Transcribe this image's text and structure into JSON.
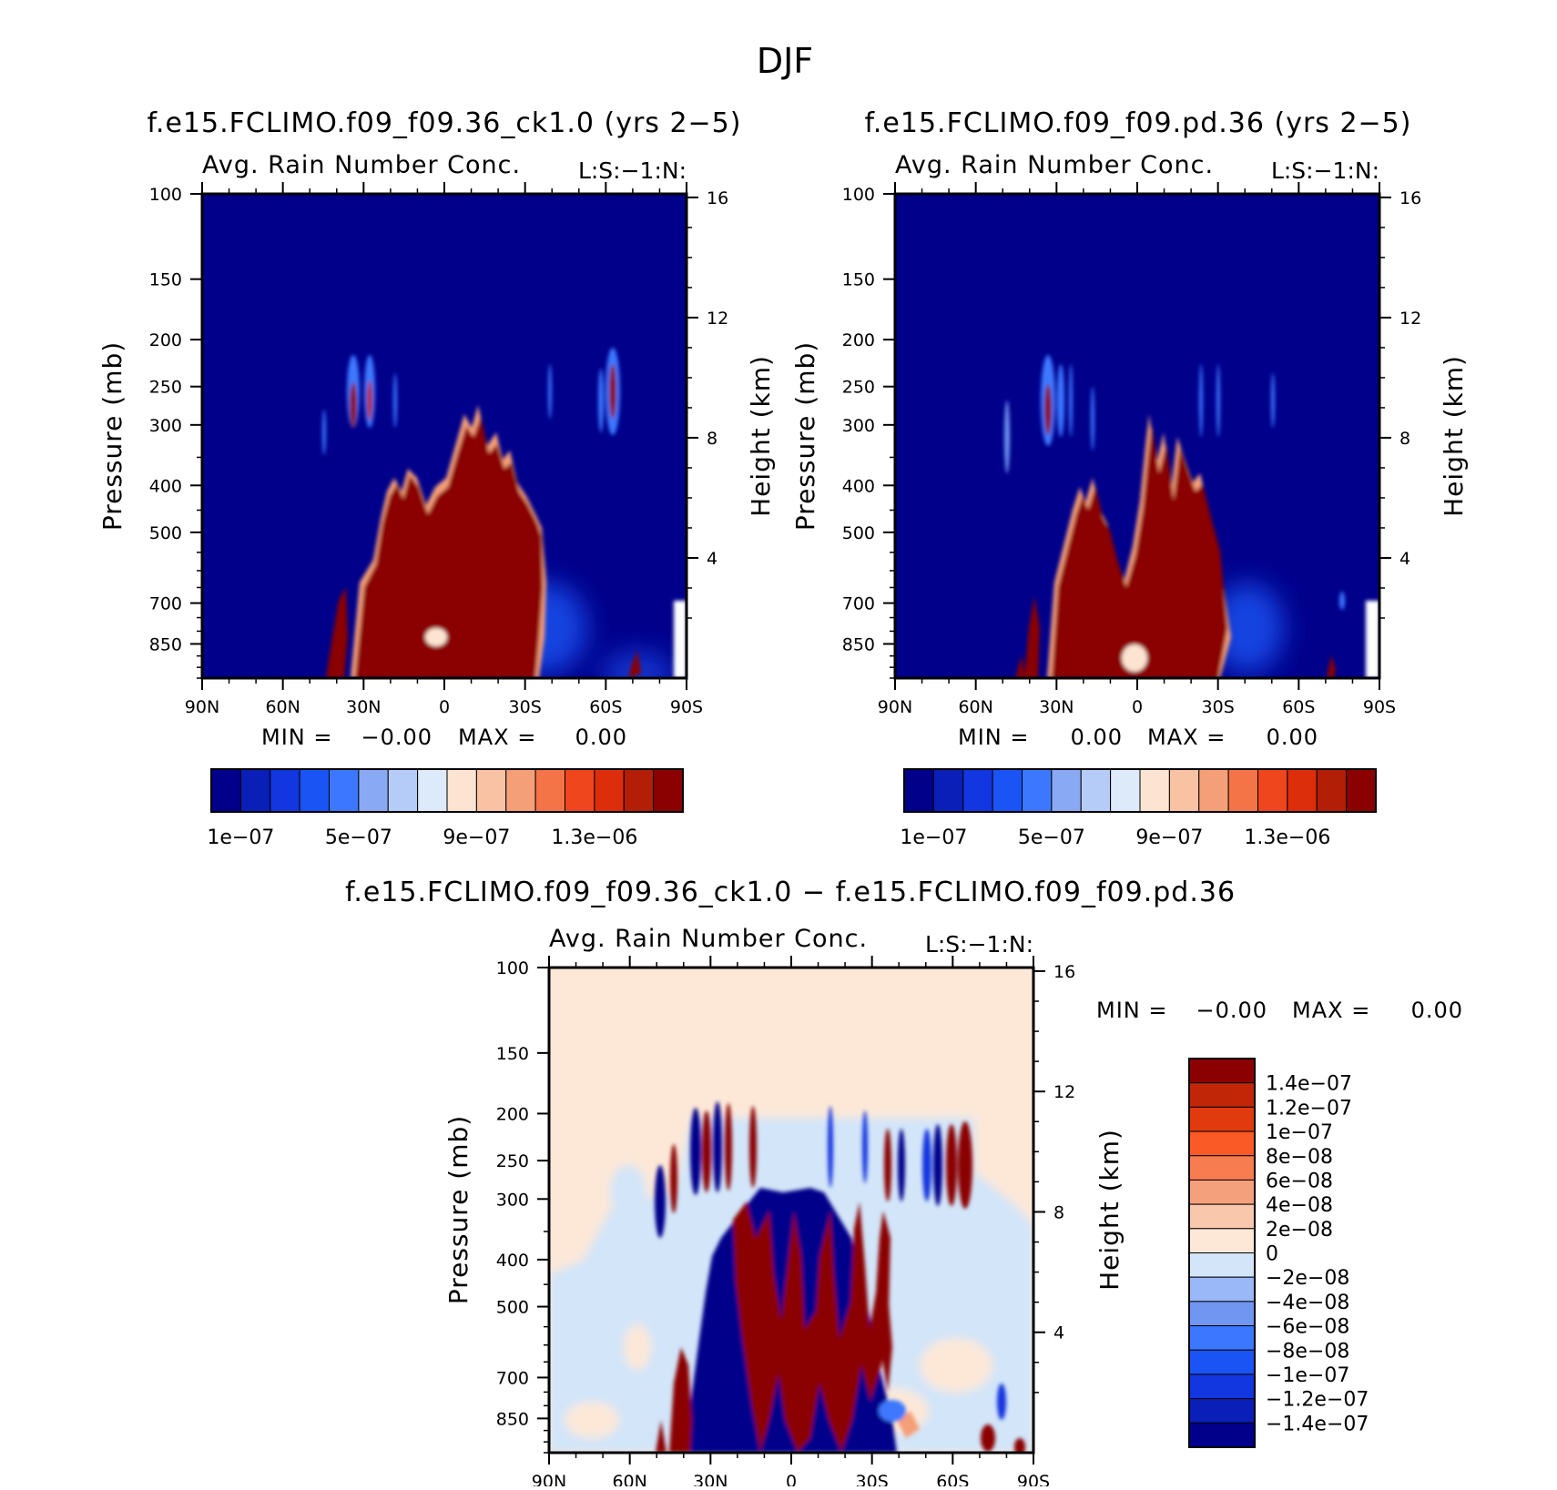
{
  "page": {
    "title": "DJF"
  },
  "colors": {
    "absolute": [
      "#00008b",
      "#0a1fb7",
      "#1236df",
      "#1b54f5",
      "#3c78ff",
      "#8aa9f4",
      "#b6ccf8",
      "#dceaf9",
      "#fde4d2",
      "#f9c2a2",
      "#f59f78",
      "#f47347",
      "#f0461e",
      "#dc2e0a",
      "#b31e06",
      "#8b0000"
    ],
    "difference": [
      "#00008b",
      "#0a1fb7",
      "#1236df",
      "#1b54f5",
      "#3c78ff",
      "#6f96f0",
      "#9ab8f7",
      "#d2e5f9",
      "#fde8d8",
      "#f9c8ac",
      "#f5a07c",
      "#f77c50",
      "#fa5a26",
      "#e13a0e",
      "#c12707",
      "#8b0000"
    ]
  },
  "panels": {
    "ctrl": {
      "title": "f.e15.FCLIMO.f09_f09.36_ck1.0 (yrs 2−5)",
      "var_label": "Avg. Rain Number Conc.",
      "units": "L:S:−1:N:",
      "minmax": {
        "min_label": "MIN =",
        "min_value": "−0.00",
        "max_label": "MAX =",
        "max_value": "0.00"
      }
    },
    "test": {
      "title": "f.e15.FCLIMO.f09_f09.pd.36 (yrs 2−5)",
      "var_label": "Avg. Rain Number Conc.",
      "units": "L:S:−1:N:",
      "minmax": {
        "min_label": "MIN =",
        "min_value": "0.00",
        "max_label": "MAX =",
        "max_value": "0.00"
      }
    },
    "diff": {
      "title": "f.e15.FCLIMO.f09_f09.36_ck1.0 − f.e15.FCLIMO.f09_f09.pd.36",
      "var_label": "Avg. Rain Number Conc.",
      "units": "L:S:−1:N:",
      "minmax": {
        "min_label": "MIN =",
        "min_value": "−0.00",
        "max_label": "MAX =",
        "max_value": "0.00"
      }
    }
  },
  "colorbar_abs_labels": [
    "1e−07",
    "5e−07",
    "9e−07",
    "1.3e−06"
  ],
  "colorbar_diff_labels": [
    "1.4e−07",
    "1.2e−07",
    "1e−07",
    "8e−08",
    "6e−08",
    "4e−08",
    "2e−08",
    "0",
    "−2e−08",
    "−4e−08",
    "−6e−08",
    "−8e−08",
    "−1e−07",
    "−1.2e−07",
    "−1.4e−07"
  ],
  "chart_data": [
    {
      "type": "heatmap",
      "title": "f.e15.FCLIMO.f09_f09.36_ck1.0 (yrs 2−5)",
      "subtitle": "Avg. Rain Number Conc.",
      "units": "L:S:−1:N:",
      "xlabel": "",
      "ylabel": "Pressure (mb)",
      "y2label": "Height (km)",
      "x_ticks": [
        "90N",
        "60N",
        "30N",
        "0",
        "30S",
        "60S",
        "90S"
      ],
      "xlim": [
        90,
        -90
      ],
      "y_ticks": [
        100,
        150,
        200,
        250,
        300,
        400,
        500,
        700,
        850
      ],
      "ylim": [
        1000,
        100
      ],
      "y_scale": "log",
      "y2_ticks": [
        16,
        12,
        8,
        4
      ],
      "levels": [
        1e-07,
        2e-07,
        3e-07,
        4e-07,
        5e-07,
        6e-07,
        7e-07,
        8e-07,
        9e-07,
        1e-06,
        1.1e-06,
        1.2e-06,
        1.3e-06,
        1.4e-06,
        1.5e-06
      ],
      "colorbar_labels": [
        "1e−07",
        "5e−07",
        "9e−07",
        "1.3e−06"
      ],
      "min": "−0.00",
      "max": "0.00",
      "blobs": [
        {
          "lat": 30,
          "p": 250,
          "lat_w": 3,
          "p_top": 200,
          "p_bot": 320,
          "level": "high"
        },
        {
          "lat": -63,
          "p": 260,
          "lat_w": 3,
          "p_top": 200,
          "p_bot": 320,
          "level": "high"
        },
        {
          "lat": 5,
          "p": 650,
          "lat_w": 60,
          "p_top": 330,
          "p_bot": 1000,
          "level": "high"
        },
        {
          "lat": 37,
          "p": 800,
          "lat_w": 6,
          "p_top": 600,
          "p_bot": 1000,
          "level": "high"
        }
      ]
    },
    {
      "type": "heatmap",
      "title": "f.e15.FCLIMO.f09_f09.pd.36 (yrs 2−5)",
      "subtitle": "Avg. Rain Number Conc.",
      "units": "L:S:−1:N:",
      "xlabel": "",
      "ylabel": "Pressure (mb)",
      "y2label": "Height (km)",
      "x_ticks": [
        "90N",
        "60N",
        "30N",
        "0",
        "30S",
        "60S",
        "90S"
      ],
      "xlim": [
        90,
        -90
      ],
      "y_ticks": [
        100,
        150,
        200,
        250,
        300,
        400,
        500,
        700,
        850
      ],
      "ylim": [
        1000,
        100
      ],
      "y_scale": "log",
      "y2_ticks": [
        16,
        12,
        8,
        4
      ],
      "levels": [
        1e-07,
        2e-07,
        3e-07,
        4e-07,
        5e-07,
        6e-07,
        7e-07,
        8e-07,
        9e-07,
        1e-06,
        1.1e-06,
        1.2e-06,
        1.3e-06,
        1.4e-06,
        1.5e-06
      ],
      "colorbar_labels": [
        "1e−07",
        "5e−07",
        "9e−07",
        "1.3e−06"
      ],
      "min": "0.00",
      "max": "0.00",
      "blobs": [
        {
          "lat": 31,
          "p": 250,
          "lat_w": 4,
          "p_top": 200,
          "p_bot": 330,
          "level": "high"
        },
        {
          "lat": 5,
          "p": 620,
          "lat_w": 55,
          "p_top": 320,
          "p_bot": 1000,
          "level": "high"
        },
        {
          "lat": 40,
          "p": 820,
          "lat_w": 6,
          "p_top": 600,
          "p_bot": 1000,
          "level": "high"
        }
      ]
    },
    {
      "type": "heatmap",
      "title": "f.e15.FCLIMO.f09_f09.36_ck1.0 − f.e15.FCLIMO.f09_f09.pd.36",
      "subtitle": "Avg. Rain Number Conc.",
      "units": "L:S:−1:N:",
      "xlabel": "",
      "ylabel": "Pressure (mb)",
      "y2label": "Height (km)",
      "x_ticks": [
        "90N",
        "60N",
        "30N",
        "0",
        "30S",
        "60S",
        "90S"
      ],
      "xlim": [
        90,
        -90
      ],
      "y_ticks": [
        100,
        150,
        200,
        250,
        300,
        400,
        500,
        700,
        850
      ],
      "ylim": [
        1000,
        100
      ],
      "y_scale": "log",
      "y2_ticks": [
        16,
        12,
        8,
        4
      ],
      "levels": [
        -1.4e-07,
        -1.2e-07,
        -1e-07,
        -8e-08,
        -6e-08,
        -4e-08,
        -2e-08,
        0,
        2e-08,
        4e-08,
        6e-08,
        8e-08,
        1e-07,
        1.2e-07,
        1.4e-07
      ],
      "colorbar_labels": [
        "1.4e−07",
        "1.2e−07",
        "1e−07",
        "8e−08",
        "6e−08",
        "4e−08",
        "2e−08",
        "0",
        "−2e−08",
        "−4e−08",
        "−6e−08",
        "−8e−08",
        "−1e−07",
        "−1.2e−07",
        "−1.4e−07"
      ],
      "min": "−0.00",
      "max": "0.00",
      "blobs": [
        {
          "lat": 10,
          "p": 600,
          "lat_w": 40,
          "p_top": 320,
          "p_bot": 1000,
          "level": "mixed"
        },
        {
          "lat": 25,
          "p": 260,
          "lat_w": 15,
          "p_top": 200,
          "p_bot": 330,
          "level": "mixed"
        },
        {
          "lat": -60,
          "p": 260,
          "lat_w": 10,
          "p_top": 200,
          "p_bot": 330,
          "level": "mixed"
        }
      ]
    }
  ]
}
